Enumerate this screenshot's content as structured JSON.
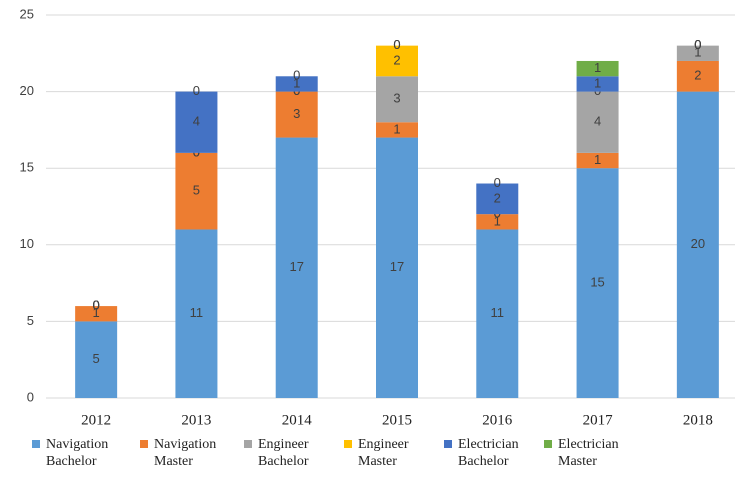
{
  "chart_data": {
    "type": "stacked_bar",
    "categories": [
      "2012",
      "2013",
      "2014",
      "2015",
      "2016",
      "2017",
      "2018"
    ],
    "series": [
      {
        "name": "Navigation Bachelor",
        "color": "#5b9bd5",
        "values": [
          5,
          11,
          17,
          17,
          11,
          15,
          20
        ]
      },
      {
        "name": "Navigation Master",
        "color": "#ed7d31",
        "values": [
          1,
          5,
          3,
          1,
          1,
          1,
          2
        ]
      },
      {
        "name": "Engineer Bachelor",
        "color": "#a5a5a5",
        "values": [
          0,
          0,
          0,
          3,
          0,
          4,
          1
        ]
      },
      {
        "name": "Engineer Master",
        "color": "#ffc000",
        "values": [
          0,
          0,
          0,
          2,
          0,
          0,
          0
        ]
      },
      {
        "name": "Electrician Bachelor",
        "color": "#4472c4",
        "values": [
          0,
          4,
          1,
          0,
          2,
          1,
          0
        ]
      },
      {
        "name": "Electrician Master",
        "color": "#70ad47",
        "values": [
          0,
          0,
          0,
          0,
          0,
          1,
          0
        ]
      }
    ],
    "ylim": [
      0,
      25
    ],
    "yticks": [
      0,
      5,
      10,
      15,
      20,
      25
    ],
    "grid": true,
    "legend": "bottom"
  }
}
